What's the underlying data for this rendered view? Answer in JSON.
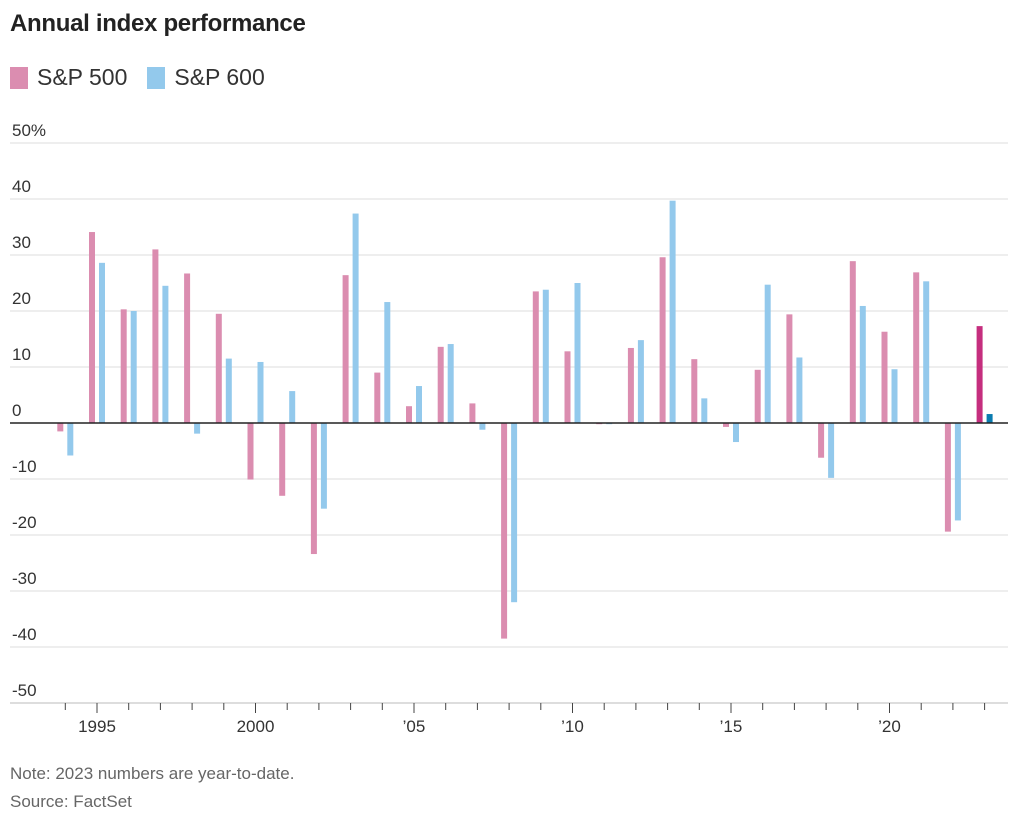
{
  "chart_data": {
    "type": "bar",
    "title": "Annual index performance",
    "colors": {
      "sp500": "#db8db0",
      "sp600": "#93c9ec",
      "sp500_ytd": "#c52e7e",
      "sp600_ytd": "#0b7cb0"
    },
    "x": [
      1994,
      1995,
      1996,
      1997,
      1998,
      1999,
      2000,
      2001,
      2002,
      2003,
      2004,
      2005,
      2006,
      2007,
      2008,
      2009,
      2010,
      2011,
      2012,
      2013,
      2014,
      2015,
      2016,
      2017,
      2018,
      2019,
      2020,
      2021,
      2022,
      2023
    ],
    "series": [
      {
        "name": "S&P 500",
        "values": [
          -1.5,
          34.1,
          20.3,
          31.0,
          26.7,
          19.5,
          -10.1,
          -13.0,
          -23.4,
          26.4,
          9.0,
          3.0,
          13.6,
          3.5,
          -38.5,
          23.5,
          12.8,
          0.0,
          13.4,
          29.6,
          11.4,
          -0.7,
          9.5,
          19.4,
          -6.2,
          28.9,
          16.3,
          26.9,
          -19.4,
          17.3
        ]
      },
      {
        "name": "S&P 600",
        "values": [
          -5.8,
          28.6,
          20.0,
          24.5,
          -1.9,
          11.5,
          10.9,
          5.7,
          -15.3,
          37.4,
          21.6,
          6.6,
          14.1,
          -1.2,
          -32.0,
          23.8,
          25.0,
          -0.2,
          14.8,
          39.7,
          4.4,
          -3.4,
          24.7,
          11.7,
          -9.8,
          20.9,
          9.6,
          25.3,
          -17.4,
          1.6
        ]
      }
    ],
    "ytd_year": 2023,
    "ylim": [
      -50,
      50
    ],
    "yticks": [
      50,
      40,
      30,
      20,
      10,
      0,
      -10,
      -20,
      -30,
      -40,
      -50
    ],
    "ytick_labels": [
      "50%",
      "40",
      "30",
      "20",
      "10",
      "0",
      "-10",
      "-20",
      "-30",
      "-40",
      "-50"
    ],
    "xticks": [
      1995,
      2000,
      2005,
      2010,
      2015,
      2020
    ],
    "xtick_labels": [
      "1995",
      "2000",
      "’05",
      "’10",
      "’15",
      "’20"
    ],
    "grid": true,
    "legend_position": "top-left"
  },
  "note": "Note: 2023 numbers are year-to-date.",
  "source": "Source: FactSet"
}
